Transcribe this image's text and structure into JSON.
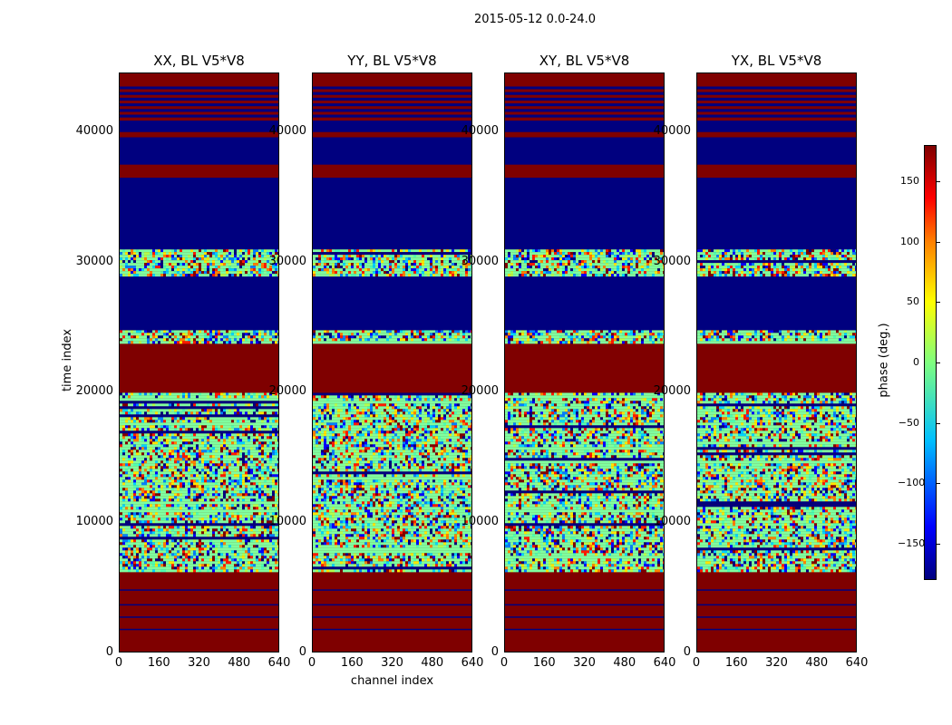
{
  "figure": {
    "title": "2015-05-12 0.0-24.0",
    "ylabel": "time index",
    "xlabel": "channel index",
    "colorbar_label": "phase (deg.)"
  },
  "chart_data": {
    "type": "heatmap",
    "title": "2015-05-12 0.0-24.0",
    "xlabel": "channel index",
    "ylabel": "time index",
    "xlim": [
      0,
      640
    ],
    "ylim": [
      0,
      44500
    ],
    "x_ticks": [
      0,
      160,
      320,
      480,
      640
    ],
    "x_tick_labels": [
      "0",
      "160",
      "320",
      "480",
      "640"
    ],
    "y_ticks": [
      0,
      10000,
      20000,
      30000,
      40000
    ],
    "y_tick_labels": [
      "0",
      "10000",
      "20000",
      "30000",
      "40000"
    ],
    "colorbar": {
      "label": "phase (deg.)",
      "range": [
        -180,
        180
      ],
      "ticks": [
        150,
        100,
        50,
        0,
        -50,
        -100,
        -150
      ],
      "tick_labels": [
        "150",
        "100",
        "50",
        "0",
        "−50",
        "−100",
        "−150"
      ],
      "colormap": [
        "#00007f",
        "#0000ff",
        "#00bfff",
        "#7fff7f",
        "#ffff00",
        "#ff7f00",
        "#ff0000",
        "#7f0000"
      ]
    },
    "panels": [
      {
        "title": "XX, BL V5*V8",
        "polarization": "XX"
      },
      {
        "title": "YY, BL V5*V8",
        "polarization": "YY"
      },
      {
        "title": "XY, BL V5*V8",
        "polarization": "XY"
      },
      {
        "title": "YX, BL V5*V8",
        "polarization": "YX"
      }
    ],
    "time_regions": [
      {
        "from": 0,
        "to": 6300,
        "phase": 180,
        "kind": "solid"
      },
      {
        "from": 6300,
        "to": 20000,
        "phase": null,
        "kind": "noisy"
      },
      {
        "from": 20000,
        "to": 23800,
        "phase": 180,
        "kind": "solid"
      },
      {
        "from": 23800,
        "to": 24800,
        "phase": null,
        "kind": "noisy"
      },
      {
        "from": 24800,
        "to": 29000,
        "phase": -180,
        "kind": "solid"
      },
      {
        "from": 29000,
        "to": 31000,
        "phase": null,
        "kind": "noisy"
      },
      {
        "from": 31000,
        "to": 36500,
        "phase": -180,
        "kind": "solid"
      },
      {
        "from": 36500,
        "to": 37500,
        "phase": 180,
        "kind": "solid"
      },
      {
        "from": 37500,
        "to": 39600,
        "phase": -180,
        "kind": "solid"
      },
      {
        "from": 39600,
        "to": 40000,
        "phase": 180,
        "kind": "solid"
      },
      {
        "from": 40000,
        "to": 40900,
        "phase": -180,
        "kind": "solid"
      },
      {
        "from": 40900,
        "to": 43500,
        "phase": null,
        "kind": "striped"
      },
      {
        "from": 43500,
        "to": 44500,
        "phase": 180,
        "kind": "solid"
      }
    ]
  },
  "colors": {
    "phase_max": "#7f0000",
    "phase_min": "#00007f"
  }
}
